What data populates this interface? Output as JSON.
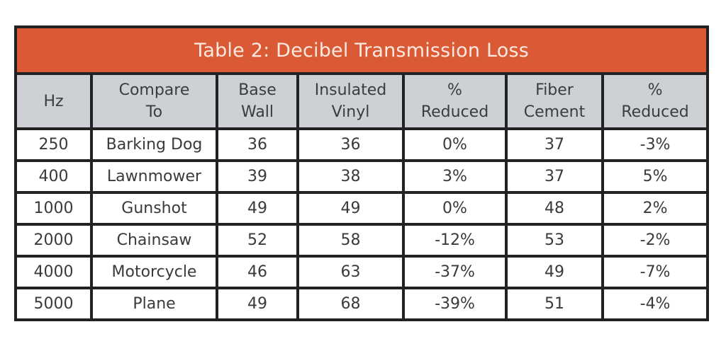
{
  "table": {
    "title": "Table 2: Decibel Transmission Loss",
    "accent_color": "#db5a36",
    "header_bg": "#cdd0d5",
    "columns": [
      {
        "line1": "Hz",
        "line2": ""
      },
      {
        "line1": "Compare",
        "line2": "To"
      },
      {
        "line1": "Base",
        "line2": "Wall"
      },
      {
        "line1": "Insulated",
        "line2": "Vinyl"
      },
      {
        "line1": "%",
        "line2": "Reduced"
      },
      {
        "line1": "Fiber",
        "line2": "Cement"
      },
      {
        "line1": "%",
        "line2": "Reduced"
      }
    ],
    "rows": [
      [
        "250",
        "Barking Dog",
        "36",
        "36",
        "0%",
        "37",
        "-3%"
      ],
      [
        "400",
        "Lawnmower",
        "39",
        "38",
        "3%",
        "37",
        "5%"
      ],
      [
        "1000",
        "Gunshot",
        "49",
        "49",
        "0%",
        "48",
        "2%"
      ],
      [
        "2000",
        "Chainsaw",
        "52",
        "58",
        "-12%",
        "53",
        "-2%"
      ],
      [
        "4000",
        "Motorcycle",
        "46",
        "63",
        "-37%",
        "49",
        "-7%"
      ],
      [
        "5000",
        "Plane",
        "49",
        "68",
        "-39%",
        "51",
        "-4%"
      ]
    ]
  }
}
